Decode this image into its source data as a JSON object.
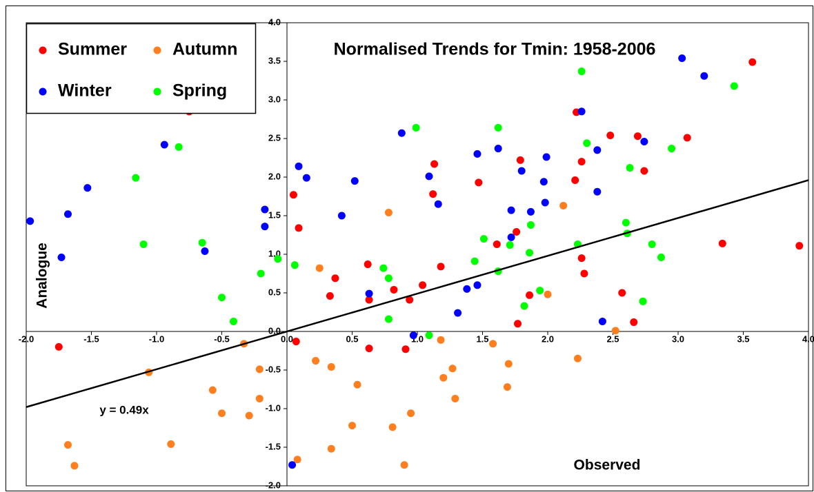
{
  "chart_data": {
    "type": "scatter",
    "title": "Normalised Trends for Tmin: 1958-2006",
    "x_label": "Observed",
    "y_label": "Analogue",
    "xlim": [
      -2.0,
      4.0
    ],
    "ylim": [
      -2.0,
      4.0
    ],
    "xticks": [
      {
        "value": -2.0,
        "label": "-2.0"
      },
      {
        "value": -1.5,
        "label": "-1.5"
      },
      {
        "value": -1.0,
        "label": "-1.0"
      },
      {
        "value": -0.5,
        "label": "-0.5"
      },
      {
        "value": 0,
        "label": "0.0"
      },
      {
        "value": 0.5,
        "label": "0.5"
      },
      {
        "value": 1.0,
        "label": "1.0"
      },
      {
        "value": 1.5,
        "label": "1.5"
      },
      {
        "value": 2.0,
        "label": "2.0"
      },
      {
        "value": 2.5,
        "label": "2.5"
      },
      {
        "value": 3.0,
        "label": "3.0"
      },
      {
        "value": 3.5,
        "label": "3.5"
      },
      {
        "value": 4.0,
        "label": "4.0"
      }
    ],
    "yticks": [
      {
        "value": -2.0,
        "label": "-2.0"
      },
      {
        "value": -1.5,
        "label": "-1.5"
      },
      {
        "value": -1.0,
        "label": "-1.0"
      },
      {
        "value": -0.5,
        "label": "-0.5"
      },
      {
        "value": 0,
        "label": "0.0"
      },
      {
        "value": 0.5,
        "label": "0.5"
      },
      {
        "value": 1.0,
        "label": "1.0"
      },
      {
        "value": 1.5,
        "label": "1.5"
      },
      {
        "value": 2.0,
        "label": "2.0"
      },
      {
        "value": 2.5,
        "label": "2.5"
      },
      {
        "value": 3.0,
        "label": "3.0"
      },
      {
        "value": 3.5,
        "label": "3.5"
      },
      {
        "value": 4.0,
        "label": "4.0"
      }
    ],
    "trendline": {
      "slope": 0.49,
      "label": "y = 0.49x"
    },
    "legend": "top-left",
    "series": [
      {
        "name": "Summer",
        "color": "#ff0000",
        "x": [
          -0.75,
          0.05,
          0.09,
          0.07,
          -1.75,
          0.62,
          0.37,
          0.33,
          0.63,
          0.63,
          0.82,
          0.91,
          0.94,
          1.04,
          1.13,
          1.12,
          1.18,
          1.47,
          1.61,
          1.79,
          1.76,
          1.86,
          1.77,
          2.21,
          2.22,
          2.26,
          2.26,
          2.28,
          2.48,
          2.69,
          2.74,
          2.57,
          2.66,
          3.07,
          3.57,
          3.34,
          3.93
        ],
        "y": [
          2.85,
          1.77,
          1.34,
          -0.13,
          -0.2,
          0.87,
          0.69,
          0.46,
          0.41,
          -0.22,
          0.54,
          -0.23,
          0.41,
          0.6,
          2.17,
          1.78,
          0.84,
          1.93,
          1.13,
          2.22,
          1.29,
          0.47,
          0.1,
          1.96,
          2.84,
          2.2,
          0.95,
          0.75,
          2.54,
          2.53,
          2.08,
          0.5,
          0.12,
          2.51,
          3.49,
          1.14,
          1.11
        ]
      },
      {
        "name": "Autumn",
        "color": "#ff7f1f",
        "x": [
          -1.68,
          -1.63,
          -1.06,
          -0.89,
          -0.57,
          -0.5,
          -0.33,
          -0.29,
          -0.21,
          -0.21,
          0.08,
          0.25,
          0.22,
          0.34,
          0.34,
          0.5,
          0.54,
          0.78,
          0.81,
          0.9,
          0.95,
          1.18,
          1.2,
          1.27,
          1.29,
          1.58,
          1.7,
          1.69,
          2.0,
          2.12,
          2.23,
          2.52
        ],
        "y": [
          -1.47,
          -1.74,
          -0.53,
          -1.46,
          -0.76,
          -1.06,
          -0.16,
          -1.09,
          -0.49,
          -0.87,
          -1.66,
          0.82,
          -0.38,
          -0.46,
          -1.52,
          -1.22,
          -0.69,
          1.54,
          -1.24,
          -1.73,
          -1.06,
          -0.11,
          -0.6,
          -0.48,
          -0.87,
          -0.16,
          -0.42,
          -0.72,
          0.48,
          1.63,
          -0.35,
          0.01
        ]
      },
      {
        "name": "Winter",
        "color": "#0000ff",
        "x": [
          -1.97,
          -1.73,
          -1.68,
          -1.53,
          -0.94,
          -0.63,
          -0.17,
          -0.17,
          0.09,
          0.15,
          0.42,
          0.52,
          0.63,
          0.88,
          0.97,
          1.09,
          1.16,
          1.31,
          1.38,
          1.46,
          1.46,
          1.62,
          1.72,
          1.72,
          1.8,
          1.87,
          1.99,
          1.97,
          1.98,
          2.26,
          2.38,
          2.38,
          2.42,
          2.74,
          3.03,
          3.2,
          0.04
        ],
        "y": [
          1.43,
          0.96,
          1.52,
          1.86,
          2.42,
          1.04,
          1.58,
          1.36,
          2.14,
          1.99,
          1.5,
          1.95,
          0.49,
          2.57,
          -0.05,
          2.01,
          1.65,
          0.24,
          0.55,
          2.3,
          0.6,
          2.37,
          1.57,
          1.22,
          2.08,
          1.55,
          2.26,
          1.94,
          1.67,
          2.85,
          2.35,
          1.81,
          0.13,
          2.46,
          3.54,
          3.31,
          -1.73
        ]
      },
      {
        "name": "Spring",
        "color": "#00ff00",
        "x": [
          -1.16,
          -1.1,
          -0.83,
          -0.65,
          -0.5,
          -0.41,
          -0.2,
          -0.07,
          0.06,
          0.74,
          0.78,
          0.78,
          0.99,
          1.09,
          1.44,
          1.51,
          1.62,
          1.62,
          1.71,
          1.82,
          1.86,
          1.87,
          1.94,
          2.23,
          2.26,
          2.3,
          2.6,
          2.61,
          2.63,
          2.8,
          2.87,
          2.73,
          2.95,
          3.43
        ],
        "y": [
          1.99,
          1.13,
          2.39,
          1.15,
          0.44,
          0.13,
          0.75,
          0.94,
          0.86,
          0.82,
          0.69,
          0.16,
          2.64,
          -0.05,
          0.91,
          1.2,
          2.64,
          0.78,
          1.12,
          0.33,
          1.02,
          1.38,
          0.53,
          1.13,
          3.37,
          2.44,
          1.41,
          1.27,
          2.12,
          1.13,
          0.96,
          0.39,
          2.37,
          3.18
        ]
      }
    ]
  }
}
